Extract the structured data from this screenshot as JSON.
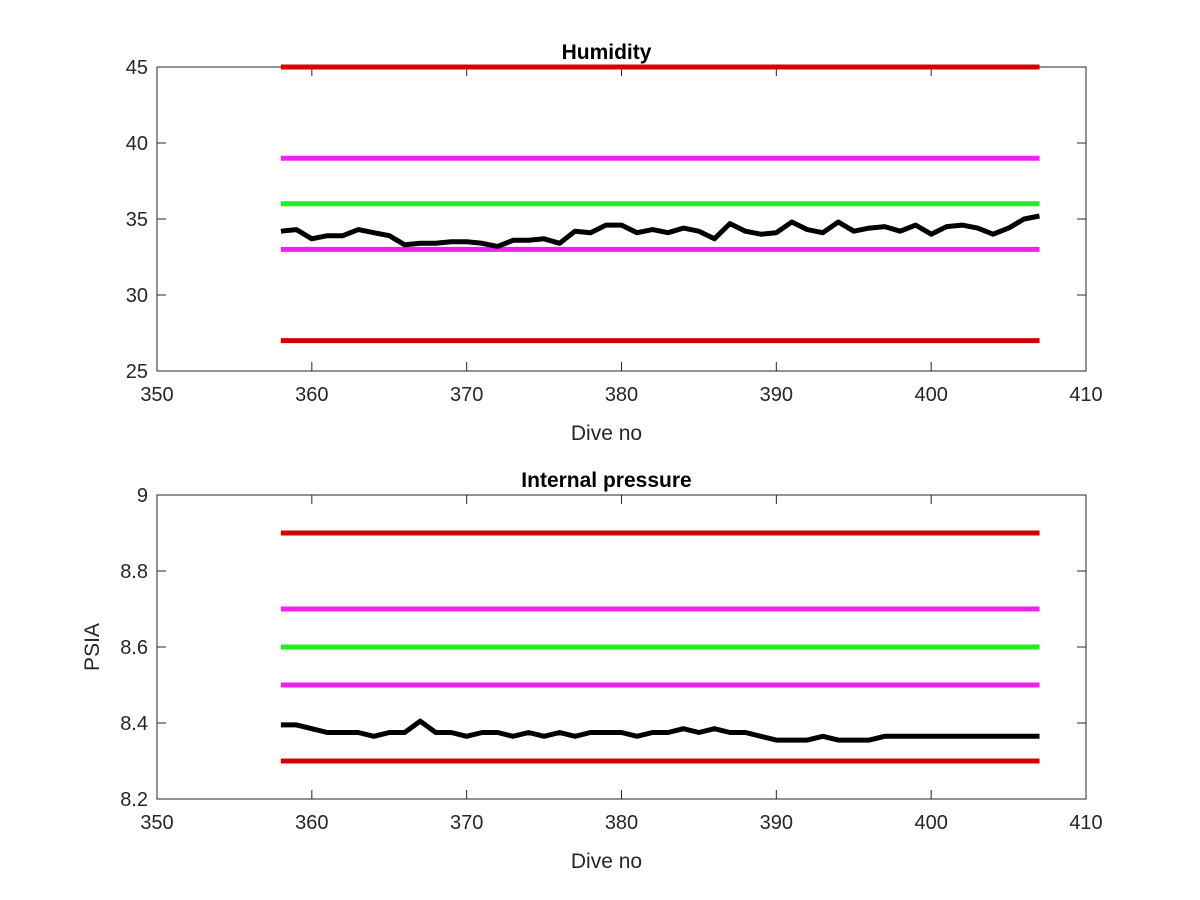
{
  "colors": {
    "red": "#d40000",
    "magenta": "#f020f0",
    "green": "#22ee22",
    "black": "#000000",
    "axis": "#262626"
  },
  "chart_data": [
    {
      "type": "line",
      "title": "Humidity",
      "xlabel": "Dive no",
      "ylabel": "",
      "xlim": [
        350,
        410
      ],
      "ylim": [
        25,
        45
      ],
      "xticks": [
        350,
        360,
        370,
        380,
        390,
        400,
        410
      ],
      "xtick_labels": [
        "350",
        "360",
        "370",
        "380",
        "390",
        "400",
        "410"
      ],
      "yticks": [
        25,
        30,
        35,
        40,
        45
      ],
      "ytick_labels": [
        "25",
        "30",
        "35",
        "40",
        "45"
      ],
      "grid": false,
      "legend": "none",
      "thresholds": [
        {
          "y": 45,
          "x": [
            358,
            407
          ],
          "color": "red"
        },
        {
          "y": 39,
          "x": [
            358,
            407
          ],
          "color": "magenta"
        },
        {
          "y": 36,
          "x": [
            358,
            407
          ],
          "color": "green"
        },
        {
          "y": 33,
          "x": [
            358,
            407
          ],
          "color": "magenta"
        },
        {
          "y": 27,
          "x": [
            358,
            407
          ],
          "color": "red"
        }
      ],
      "series": [
        {
          "color": "black",
          "x": [
            358,
            359,
            360,
            361,
            362,
            363,
            364,
            365,
            366,
            367,
            368,
            369,
            370,
            371,
            372,
            373,
            374,
            375,
            376,
            377,
            378,
            379,
            380,
            381,
            382,
            383,
            384,
            385,
            386,
            387,
            388,
            389,
            390,
            391,
            392,
            393,
            394,
            395,
            396,
            397,
            398,
            399,
            400,
            401,
            402,
            403,
            404,
            405,
            406,
            407
          ],
          "y": [
            34.2,
            34.3,
            33.7,
            33.9,
            33.9,
            34.3,
            34.1,
            33.9,
            33.3,
            33.4,
            33.4,
            33.5,
            33.5,
            33.4,
            33.2,
            33.6,
            33.6,
            33.7,
            33.4,
            34.2,
            34.1,
            34.6,
            34.6,
            34.1,
            34.3,
            34.1,
            34.4,
            34.2,
            33.7,
            34.7,
            34.2,
            34.0,
            34.1,
            34.8,
            34.3,
            34.1,
            34.8,
            34.2,
            34.4,
            34.5,
            34.2,
            34.6,
            34.0,
            34.5,
            34.6,
            34.4,
            34.0,
            34.4,
            35.0,
            35.2
          ]
        }
      ]
    },
    {
      "type": "line",
      "title": "Internal pressure",
      "xlabel": "Dive no",
      "ylabel": "PSIA",
      "xlim": [
        350,
        410
      ],
      "ylim": [
        8.2,
        9.0
      ],
      "xticks": [
        350,
        360,
        370,
        380,
        390,
        400,
        410
      ],
      "xtick_labels": [
        "350",
        "360",
        "370",
        "380",
        "390",
        "400",
        "410"
      ],
      "yticks": [
        8.2,
        8.4,
        8.6,
        8.8,
        9.0
      ],
      "ytick_labels": [
        "8.2",
        "8.4",
        "8.6",
        "8.8",
        "9"
      ],
      "grid": false,
      "legend": "none",
      "thresholds": [
        {
          "y": 8.9,
          "x": [
            358,
            407
          ],
          "color": "red"
        },
        {
          "y": 8.7,
          "x": [
            358,
            407
          ],
          "color": "magenta"
        },
        {
          "y": 8.6,
          "x": [
            358,
            407
          ],
          "color": "green"
        },
        {
          "y": 8.5,
          "x": [
            358,
            407
          ],
          "color": "magenta"
        },
        {
          "y": 8.3,
          "x": [
            358,
            407
          ],
          "color": "red"
        }
      ],
      "series": [
        {
          "color": "black",
          "x": [
            358,
            359,
            360,
            361,
            362,
            363,
            364,
            365,
            366,
            367,
            368,
            369,
            370,
            371,
            372,
            373,
            374,
            375,
            376,
            377,
            378,
            379,
            380,
            381,
            382,
            383,
            384,
            385,
            386,
            387,
            388,
            389,
            390,
            391,
            392,
            393,
            394,
            395,
            396,
            397,
            398,
            399,
            400,
            401,
            402,
            403,
            404,
            405,
            406,
            407
          ],
          "y": [
            8.395,
            8.395,
            8.385,
            8.375,
            8.375,
            8.375,
            8.365,
            8.375,
            8.375,
            8.405,
            8.375,
            8.375,
            8.365,
            8.375,
            8.375,
            8.365,
            8.375,
            8.365,
            8.375,
            8.365,
            8.375,
            8.375,
            8.375,
            8.365,
            8.375,
            8.375,
            8.385,
            8.375,
            8.385,
            8.375,
            8.375,
            8.365,
            8.355,
            8.355,
            8.355,
            8.365,
            8.355,
            8.355,
            8.355,
            8.365,
            8.365,
            8.365,
            8.365,
            8.365,
            8.365,
            8.365,
            8.365,
            8.365,
            8.365,
            8.365
          ]
        }
      ]
    }
  ]
}
